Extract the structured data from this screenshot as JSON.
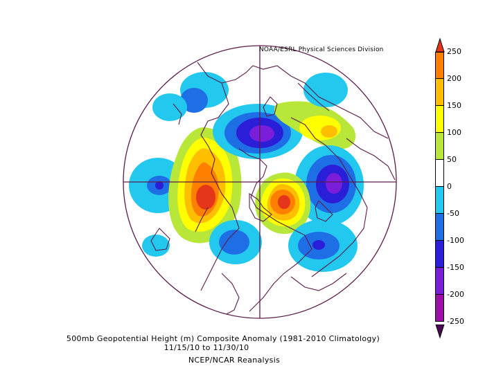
{
  "credit": "NOAA/ESRL Physical Sciences Division",
  "caption": {
    "line1": "500mb Geopotential Height (m) Composite Anomaly (1981-2010 Climatology)",
    "line2": "11/15/10  to 11/30/10",
    "line3": "NCEP/NCAR Reanalysis"
  },
  "colorbar": {
    "ticks": [
      "250",
      "200",
      "150",
      "100",
      "50",
      "0",
      "-50",
      "-100",
      "-150",
      "-200",
      "-250"
    ],
    "colors": [
      "#e5361b",
      "#ff7f00",
      "#ffbf00",
      "#ffff00",
      "#b8e639",
      "#ffffff",
      "#22c8ee",
      "#1e6fe6",
      "#2a1ed8",
      "#7a1eda",
      "#9e0fa8",
      "#4b0a52"
    ]
  },
  "map": {
    "projection": "north-polar-stereographic",
    "field": "500mb geopotential height anomaly",
    "coastline_color": "#5a1a4a"
  }
}
